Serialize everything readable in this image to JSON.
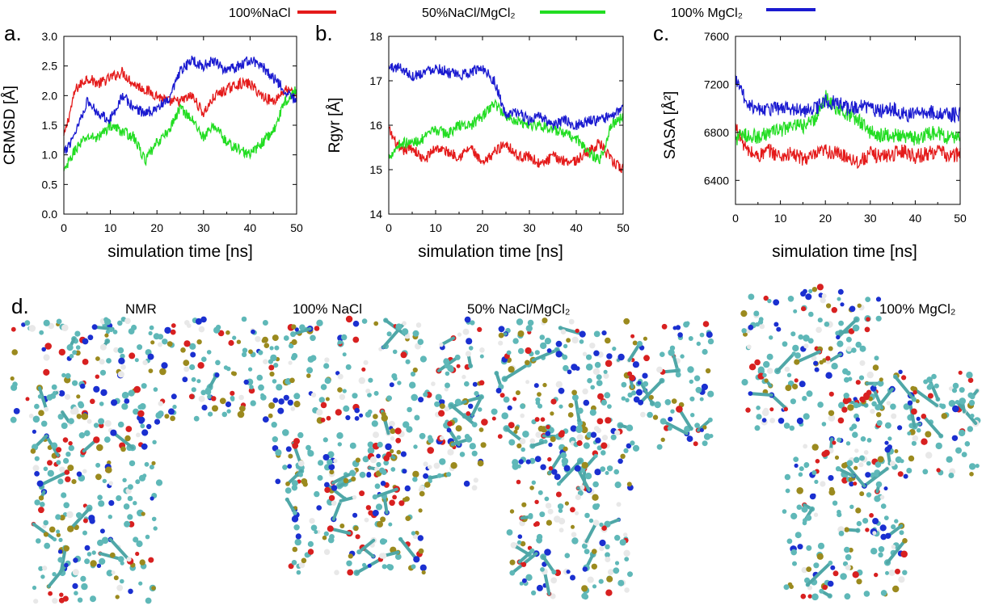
{
  "legend": [
    {
      "label": "100%NaCl",
      "color": "#e41a1a"
    },
    {
      "label": "50%NaCl/MgCl₂",
      "color": "#22dd22"
    },
    {
      "label": "100% MgCl₂",
      "color": "#1a1ad0"
    }
  ],
  "chart_data": [
    {
      "type": "line",
      "panel": "a.",
      "xlabel": "simulation time [ns]",
      "ylabel": "CRMSD [Å]",
      "xlim": [
        0,
        50
      ],
      "ylim": [
        0.0,
        3.0
      ],
      "xticks": [
        "0",
        "10",
        "20",
        "30",
        "40",
        "50"
      ],
      "yticks": [
        "0.0",
        "0.5",
        "1.0",
        "1.5",
        "2.0",
        "2.5",
        "3.0"
      ],
      "x": [
        0,
        2.5,
        5,
        7.5,
        10,
        12.5,
        15,
        17.5,
        20,
        22.5,
        25,
        27.5,
        30,
        32.5,
        35,
        37.5,
        40,
        42.5,
        45,
        47.5,
        50
      ],
      "series": [
        {
          "name": "100%NaCl",
          "color": "#e41a1a",
          "values": [
            1.3,
            2.1,
            2.3,
            2.2,
            2.3,
            2.4,
            2.2,
            2.1,
            2.0,
            1.9,
            1.9,
            2.0,
            1.7,
            2.0,
            2.1,
            2.2,
            2.2,
            2.0,
            1.9,
            2.1,
            2.0
          ]
        },
        {
          "name": "50%NaCl/MgCl₂",
          "color": "#22dd22",
          "values": [
            0.7,
            1.1,
            1.3,
            1.3,
            1.5,
            1.4,
            1.3,
            0.9,
            1.2,
            1.4,
            1.8,
            1.6,
            1.3,
            1.5,
            1.2,
            1.1,
            1.0,
            1.2,
            1.4,
            1.9,
            2.1
          ]
        },
        {
          "name": "100% MgCl₂",
          "color": "#1a1ad0",
          "values": [
            1.0,
            1.4,
            1.9,
            1.7,
            1.6,
            2.0,
            1.8,
            1.7,
            1.8,
            1.9,
            2.4,
            2.6,
            2.5,
            2.6,
            2.4,
            2.5,
            2.6,
            2.5,
            2.3,
            2.1,
            1.9
          ]
        }
      ]
    },
    {
      "type": "line",
      "panel": "b.",
      "xlabel": "simulation time [ns]",
      "ylabel": "Rgyr [Å]",
      "xlim": [
        0,
        50
      ],
      "ylim": [
        14,
        18
      ],
      "xticks": [
        "0",
        "10",
        "20",
        "30",
        "40",
        "50"
      ],
      "yticks": [
        "14",
        "15",
        "16",
        "17",
        "18"
      ],
      "x": [
        0,
        2.5,
        5,
        7.5,
        10,
        12.5,
        15,
        17.5,
        20,
        22.5,
        25,
        27.5,
        30,
        32.5,
        35,
        37.5,
        40,
        42.5,
        45,
        47.5,
        50
      ],
      "series": [
        {
          "name": "100%NaCl",
          "color": "#e41a1a",
          "values": [
            15.9,
            15.4,
            15.5,
            15.2,
            15.5,
            15.4,
            15.3,
            15.5,
            15.1,
            15.4,
            15.6,
            15.3,
            15.3,
            15.1,
            15.3,
            15.2,
            15.2,
            15.4,
            15.6,
            15.2,
            15.0
          ]
        },
        {
          "name": "50%NaCl/MgCl₂",
          "color": "#22dd22",
          "values": [
            15.3,
            15.6,
            15.6,
            15.7,
            15.9,
            15.8,
            16.0,
            16.0,
            16.2,
            16.5,
            16.2,
            16.1,
            16.0,
            16.0,
            15.9,
            15.8,
            15.7,
            15.4,
            15.2,
            16.0,
            16.2
          ]
        },
        {
          "name": "100% MgCl₂",
          "color": "#1a1ad0",
          "values": [
            17.3,
            17.3,
            17.1,
            17.2,
            17.3,
            17.2,
            17.1,
            17.2,
            17.3,
            17.0,
            16.2,
            16.3,
            16.1,
            16.2,
            16.0,
            16.1,
            16.0,
            16.1,
            16.1,
            16.2,
            16.4
          ]
        }
      ]
    },
    {
      "type": "line",
      "panel": "c.",
      "xlabel": "simulation time [ns]",
      "ylabel": "SASA [Å²]",
      "xlim": [
        0,
        50
      ],
      "ylim": [
        6200,
        7600
      ],
      "xticks": [
        "0",
        "10",
        "20",
        "30",
        "40",
        "50"
      ],
      "yticks": [
        "6400",
        "6800",
        "7200",
        "7600"
      ],
      "x": [
        0,
        2.5,
        5,
        7.5,
        10,
        12.5,
        15,
        17.5,
        20,
        22.5,
        25,
        27.5,
        30,
        32.5,
        35,
        37.5,
        40,
        42.5,
        45,
        47.5,
        50
      ],
      "series": [
        {
          "name": "100%NaCl",
          "color": "#e41a1a",
          "values": [
            6850,
            6650,
            6600,
            6650,
            6600,
            6620,
            6580,
            6600,
            6650,
            6620,
            6600,
            6550,
            6620,
            6600,
            6620,
            6650,
            6600,
            6620,
            6650,
            6600,
            6620
          ]
        },
        {
          "name": "50%NaCl/MgCl₂",
          "color": "#22dd22",
          "values": [
            6750,
            6780,
            6760,
            6800,
            6820,
            6850,
            6850,
            6900,
            7100,
            7000,
            6950,
            6900,
            6800,
            6780,
            6780,
            6760,
            6750,
            6780,
            6800,
            6750,
            6780
          ]
        },
        {
          "name": "100% MgCl₂",
          "color": "#1a1ad0",
          "values": [
            7250,
            7050,
            7000,
            7000,
            7000,
            7000,
            6980,
            7000,
            7050,
            7050,
            7000,
            7020,
            7000,
            6980,
            7000,
            6950,
            6950,
            6980,
            6950,
            6950,
            6950
          ]
        }
      ]
    }
  ],
  "panel_d": {
    "letter": "d.",
    "structures": [
      {
        "label": "NMR"
      },
      {
        "label": "100% NaCl"
      },
      {
        "label": "50% NaCl/MgCl₂"
      },
      {
        "label": "100% MgCl₂"
      }
    ]
  }
}
